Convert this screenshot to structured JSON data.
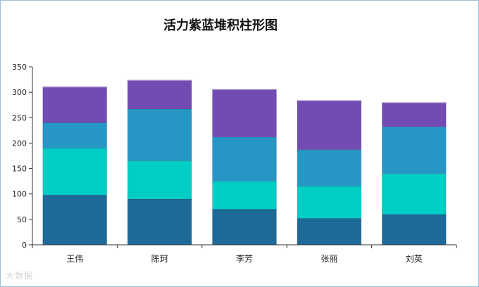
{
  "chart_data": {
    "type": "bar",
    "stacked": true,
    "title": "活力紫蓝堆积柱形图",
    "xlabel": "",
    "ylabel": "",
    "categories": [
      "王伟",
      "陈珂",
      "李芳",
      "张丽",
      "刘英"
    ],
    "ylim": [
      0,
      350
    ],
    "yticks": [
      0,
      50,
      100,
      150,
      200,
      250,
      300,
      350
    ],
    "series": [
      {
        "color": "#1d6a99",
        "values": [
          98,
          90,
          70,
          52,
          60
        ]
      },
      {
        "color": "#00cdc4",
        "values": [
          92,
          75,
          55,
          63,
          80
        ]
      },
      {
        "color": "#2697c4",
        "values": [
          50,
          102,
          87,
          72,
          92
        ]
      },
      {
        "color": "#734cb3",
        "values": [
          71,
          57,
          94,
          97,
          48
        ]
      }
    ],
    "grid": false,
    "legend": "none"
  },
  "watermark": "大数据"
}
